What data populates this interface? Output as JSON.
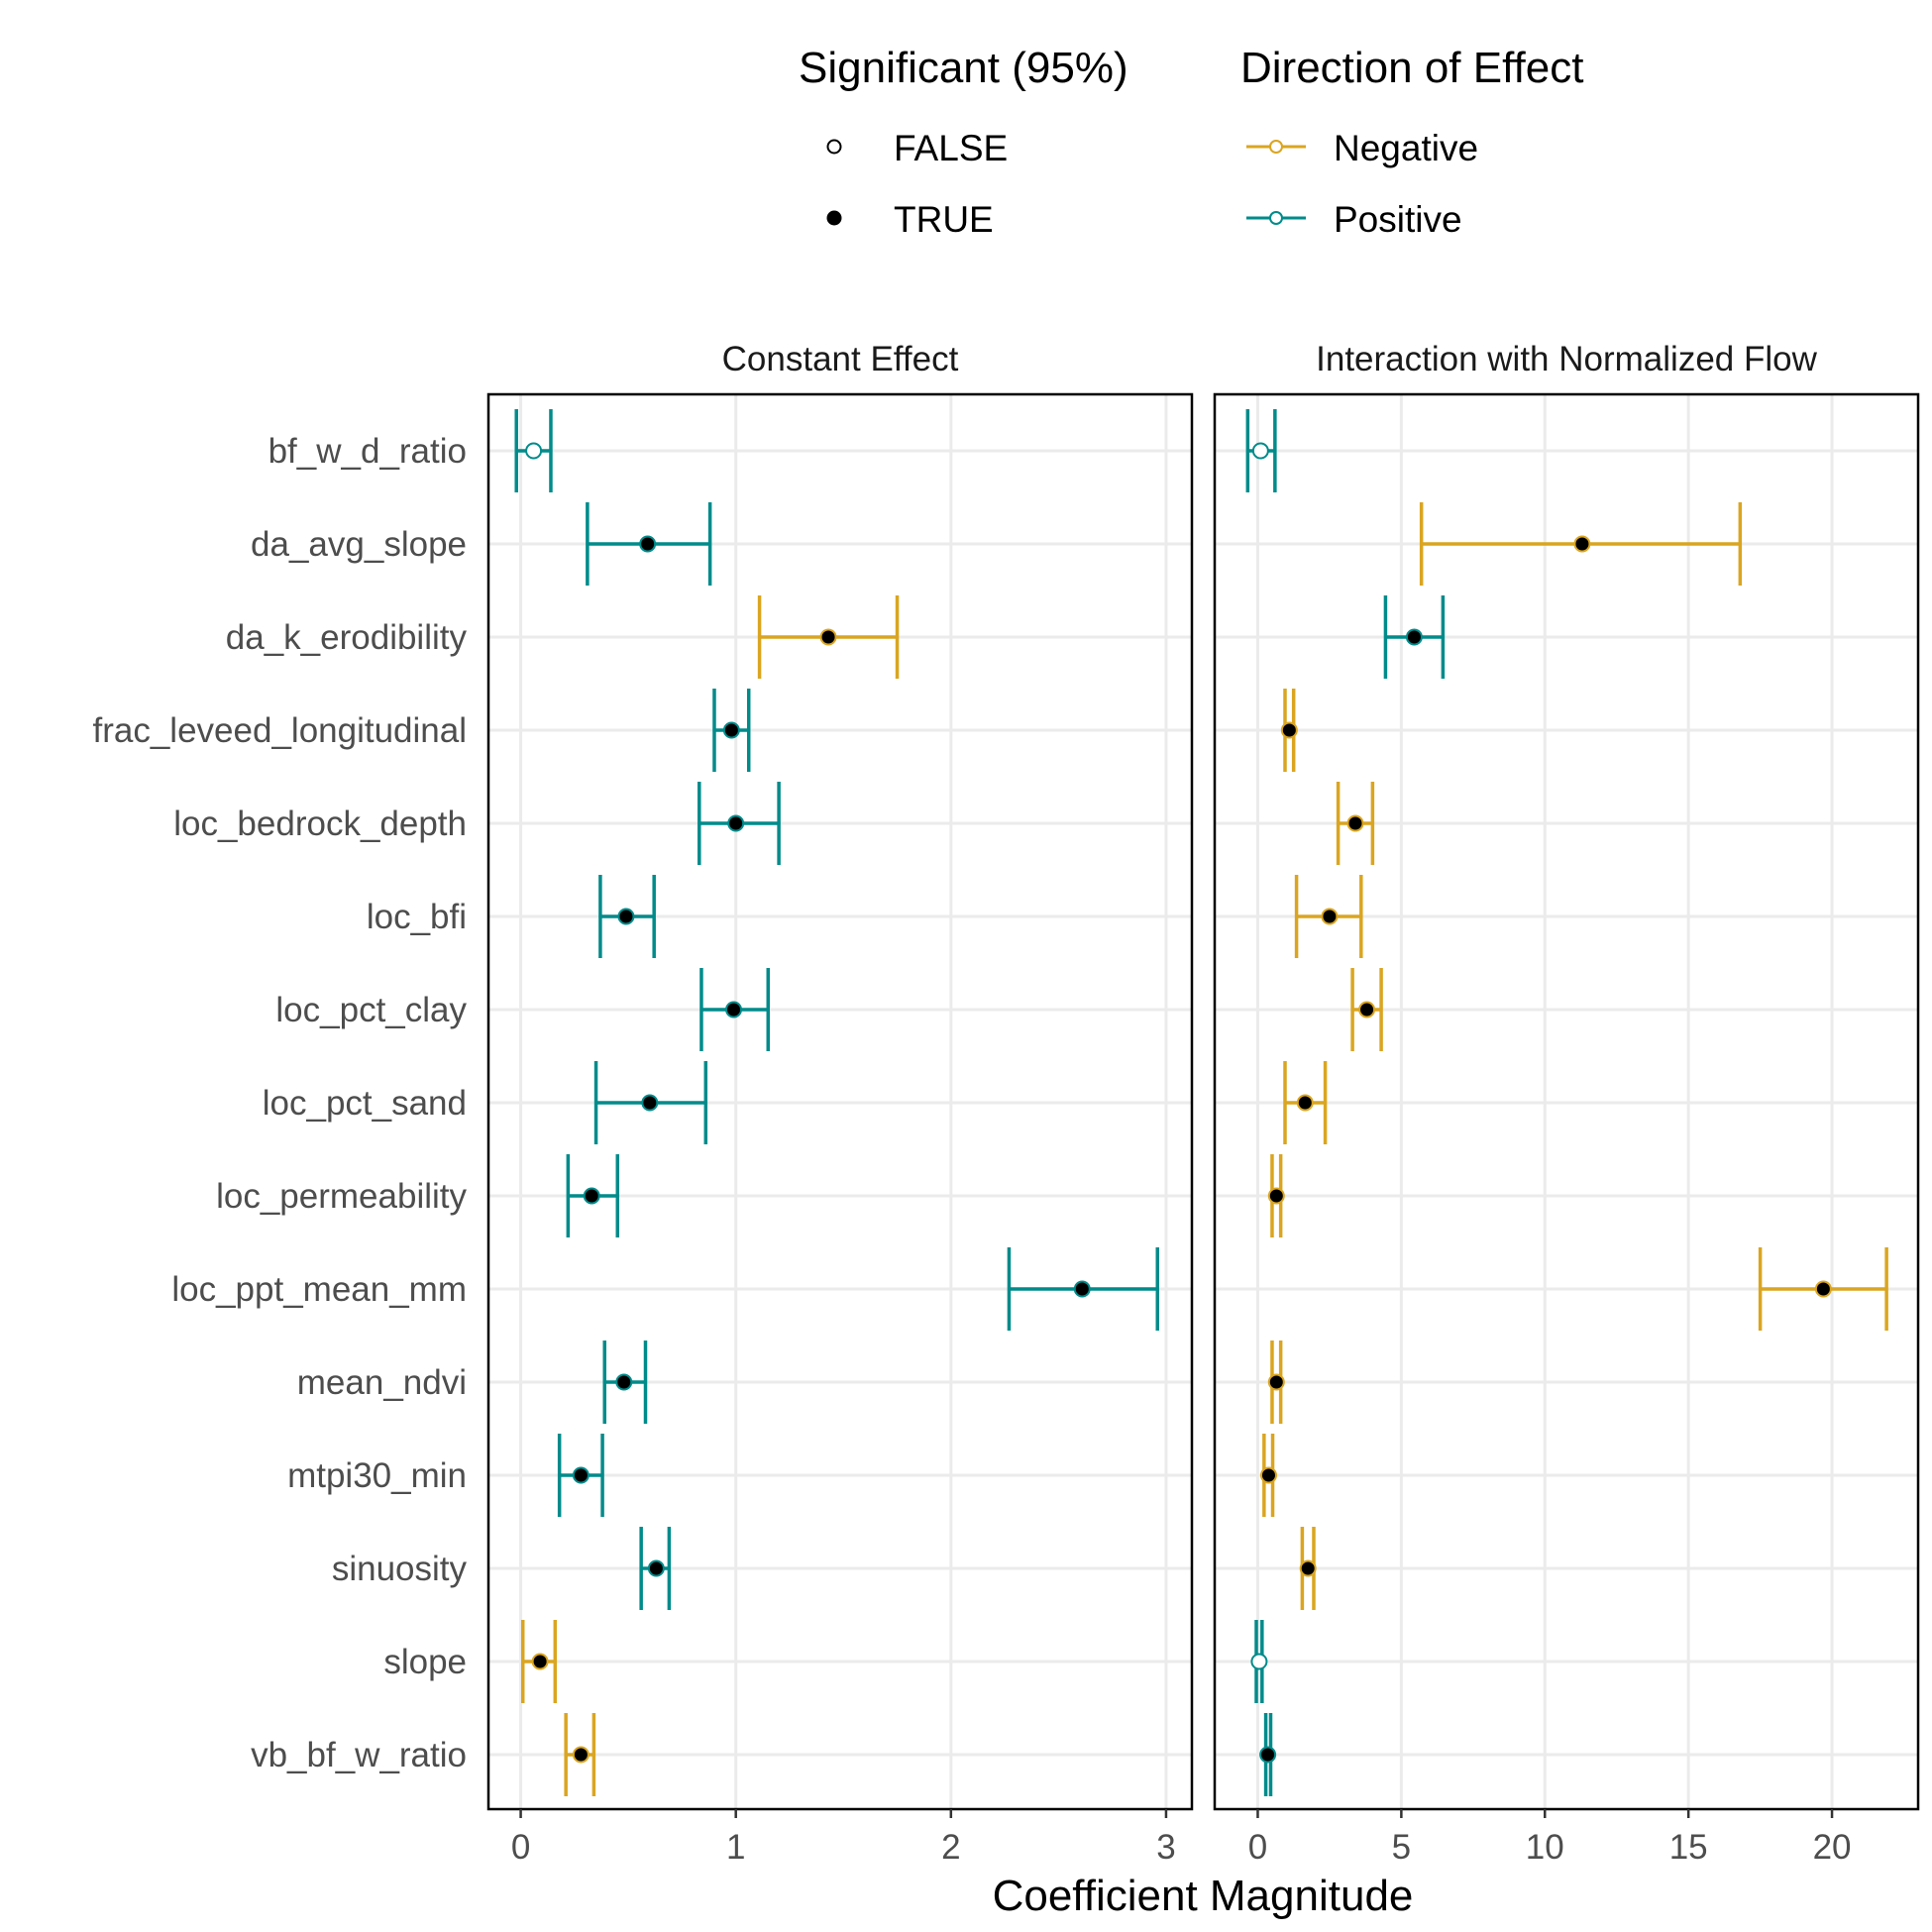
{
  "legend": {
    "significance_title": "Significant (95%)",
    "significance_items": [
      {
        "label": "FALSE",
        "filled": false
      },
      {
        "label": "TRUE",
        "filled": true
      }
    ],
    "direction_title": "Direction of Effect",
    "direction_items": [
      {
        "label": "Negative",
        "color": "#daa520"
      },
      {
        "label": "Positive",
        "color": "#008b8b"
      }
    ]
  },
  "colors": {
    "Negative": "#daa520",
    "Positive": "#008b8b",
    "grid": "#ebebeb",
    "panel_border": "#000000"
  },
  "chart_data": {
    "type": "errorbar",
    "xlabel": "Coefficient Magnitude",
    "categories": [
      "bf_w_d_ratio",
      "da_avg_slope",
      "da_k_erodibility",
      "frac_leveed_longitudinal",
      "loc_bedrock_depth",
      "loc_bfi",
      "loc_pct_clay",
      "loc_pct_sand",
      "loc_permeability",
      "loc_ppt_mean_mm",
      "mean_ndvi",
      "mtpi30_min",
      "sinuosity",
      "slope",
      "vb_bf_w_ratio"
    ],
    "grid": true,
    "legend_position": "top",
    "panels": [
      {
        "title": "Constant Effect",
        "xlim": [
          -0.15,
          3.12
        ],
        "xticks": [
          0,
          1,
          2,
          3
        ],
        "xtick_labels": [
          "0",
          "1",
          "2",
          "3"
        ],
        "points": [
          {
            "category": "bf_w_d_ratio",
            "value": 0.06,
            "lower": -0.02,
            "upper": 0.14,
            "direction": "Positive",
            "significant": false
          },
          {
            "category": "da_avg_slope",
            "value": 0.59,
            "lower": 0.31,
            "upper": 0.88,
            "direction": "Positive",
            "significant": true
          },
          {
            "category": "da_k_erodibility",
            "value": 1.43,
            "lower": 1.11,
            "upper": 1.75,
            "direction": "Negative",
            "significant": true
          },
          {
            "category": "frac_leveed_longitudinal",
            "value": 0.98,
            "lower": 0.9,
            "upper": 1.06,
            "direction": "Positive",
            "significant": true
          },
          {
            "category": "loc_bedrock_depth",
            "value": 1.0,
            "lower": 0.83,
            "upper": 1.2,
            "direction": "Positive",
            "significant": true
          },
          {
            "category": "loc_bfi",
            "value": 0.49,
            "lower": 0.37,
            "upper": 0.62,
            "direction": "Positive",
            "significant": true
          },
          {
            "category": "loc_pct_clay",
            "value": 0.99,
            "lower": 0.84,
            "upper": 1.15,
            "direction": "Positive",
            "significant": true
          },
          {
            "category": "loc_pct_sand",
            "value": 0.6,
            "lower": 0.35,
            "upper": 0.86,
            "direction": "Positive",
            "significant": true
          },
          {
            "category": "loc_permeability",
            "value": 0.33,
            "lower": 0.22,
            "upper": 0.45,
            "direction": "Positive",
            "significant": true
          },
          {
            "category": "loc_ppt_mean_mm",
            "value": 2.61,
            "lower": 2.27,
            "upper": 2.96,
            "direction": "Positive",
            "significant": true
          },
          {
            "category": "mean_ndvi",
            "value": 0.48,
            "lower": 0.39,
            "upper": 0.58,
            "direction": "Positive",
            "significant": true
          },
          {
            "category": "mtpi30_min",
            "value": 0.28,
            "lower": 0.18,
            "upper": 0.38,
            "direction": "Positive",
            "significant": true
          },
          {
            "category": "sinuosity",
            "value": 0.63,
            "lower": 0.56,
            "upper": 0.69,
            "direction": "Positive",
            "significant": true
          },
          {
            "category": "slope",
            "value": 0.09,
            "lower": 0.01,
            "upper": 0.16,
            "direction": "Negative",
            "significant": true
          },
          {
            "category": "vb_bf_w_ratio",
            "value": 0.28,
            "lower": 0.21,
            "upper": 0.34,
            "direction": "Negative",
            "significant": true
          }
        ]
      },
      {
        "title": "Interaction with Normalized Flow",
        "xlim": [
          -1.5,
          23.0
        ],
        "xticks": [
          0,
          5,
          10,
          15,
          20
        ],
        "xtick_labels": [
          "0",
          "5",
          "10",
          "15",
          "20"
        ],
        "points": [
          {
            "category": "bf_w_d_ratio",
            "value": 0.1,
            "lower": -0.35,
            "upper": 0.6,
            "direction": "Positive",
            "significant": false
          },
          {
            "category": "da_avg_slope",
            "value": 11.3,
            "lower": 5.7,
            "upper": 16.8,
            "direction": "Negative",
            "significant": true
          },
          {
            "category": "da_k_erodibility",
            "value": 5.45,
            "lower": 4.45,
            "upper": 6.45,
            "direction": "Positive",
            "significant": true
          },
          {
            "category": "frac_leveed_longitudinal",
            "value": 1.1,
            "lower": 0.95,
            "upper": 1.25,
            "direction": "Negative",
            "significant": true
          },
          {
            "category": "loc_bedrock_depth",
            "value": 3.4,
            "lower": 2.8,
            "upper": 4.0,
            "direction": "Negative",
            "significant": true
          },
          {
            "category": "loc_bfi",
            "value": 2.5,
            "lower": 1.35,
            "upper": 3.6,
            "direction": "Negative",
            "significant": true
          },
          {
            "category": "loc_pct_clay",
            "value": 3.8,
            "lower": 3.3,
            "upper": 4.3,
            "direction": "Negative",
            "significant": true
          },
          {
            "category": "loc_pct_sand",
            "value": 1.65,
            "lower": 0.95,
            "upper": 2.35,
            "direction": "Negative",
            "significant": true
          },
          {
            "category": "loc_permeability",
            "value": 0.65,
            "lower": 0.5,
            "upper": 0.8,
            "direction": "Negative",
            "significant": true
          },
          {
            "category": "loc_ppt_mean_mm",
            "value": 19.7,
            "lower": 17.5,
            "upper": 21.9,
            "direction": "Negative",
            "significant": true
          },
          {
            "category": "mean_ndvi",
            "value": 0.65,
            "lower": 0.5,
            "upper": 0.8,
            "direction": "Negative",
            "significant": true
          },
          {
            "category": "mtpi30_min",
            "value": 0.38,
            "lower": 0.22,
            "upper": 0.52,
            "direction": "Negative",
            "significant": true
          },
          {
            "category": "sinuosity",
            "value": 1.75,
            "lower": 1.55,
            "upper": 1.95,
            "direction": "Negative",
            "significant": true
          },
          {
            "category": "slope",
            "value": 0.05,
            "lower": -0.05,
            "upper": 0.15,
            "direction": "Positive",
            "significant": false
          },
          {
            "category": "vb_bf_w_ratio",
            "value": 0.35,
            "lower": 0.28,
            "upper": 0.45,
            "direction": "Positive",
            "significant": true
          }
        ]
      }
    ]
  }
}
